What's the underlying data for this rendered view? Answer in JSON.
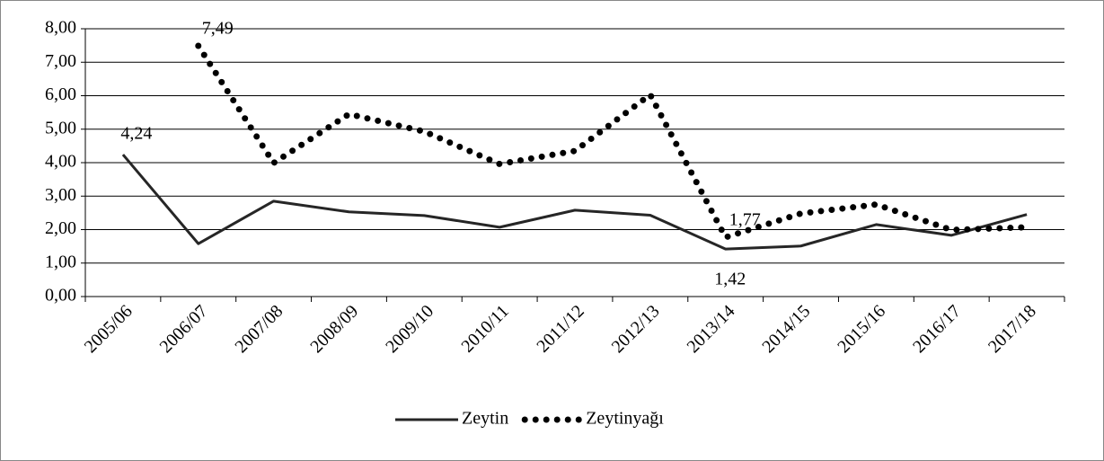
{
  "chart_data": {
    "type": "line",
    "categories": [
      "2005/06",
      "2006/07",
      "2007/08",
      "2008/09",
      "2009/10",
      "2010/11",
      "2011/12",
      "2012/13",
      "2013/14",
      "2014/15",
      "2015/16",
      "2016/17",
      "2017/18"
    ],
    "series": [
      {
        "name": "Zeytin",
        "color": "#262626",
        "style": "solid",
        "values": [
          4.24,
          1.58,
          2.85,
          2.53,
          2.42,
          2.07,
          2.58,
          2.43,
          1.42,
          1.51,
          2.15,
          1.83,
          2.45
        ],
        "value_labels": [
          "4,24",
          null,
          null,
          null,
          null,
          null,
          null,
          null,
          "1,42",
          null,
          null,
          null,
          null
        ]
      },
      {
        "name": "Zeytinyağı",
        "color": "#000000",
        "style": "dotted",
        "values": [
          null,
          7.49,
          3.99,
          5.45,
          4.93,
          3.96,
          4.35,
          6.03,
          1.77,
          2.48,
          2.75,
          1.99,
          2.07
        ],
        "value_labels": [
          null,
          "7,49",
          null,
          null,
          null,
          null,
          null,
          null,
          "1,77",
          null,
          null,
          null,
          null
        ]
      }
    ],
    "ylim": [
      0,
      8
    ],
    "yticks": [
      {
        "value": 0,
        "label": "0,00"
      },
      {
        "value": 1,
        "label": "1,00"
      },
      {
        "value": 2,
        "label": "2,00"
      },
      {
        "value": 3,
        "label": "3,00"
      },
      {
        "value": 4,
        "label": "4,00"
      },
      {
        "value": 5,
        "label": "5,00"
      },
      {
        "value": 6,
        "label": "6,00"
      },
      {
        "value": 7,
        "label": "7,00"
      },
      {
        "value": 8,
        "label": "8,00"
      }
    ],
    "grid": true,
    "legend": "bottom"
  }
}
